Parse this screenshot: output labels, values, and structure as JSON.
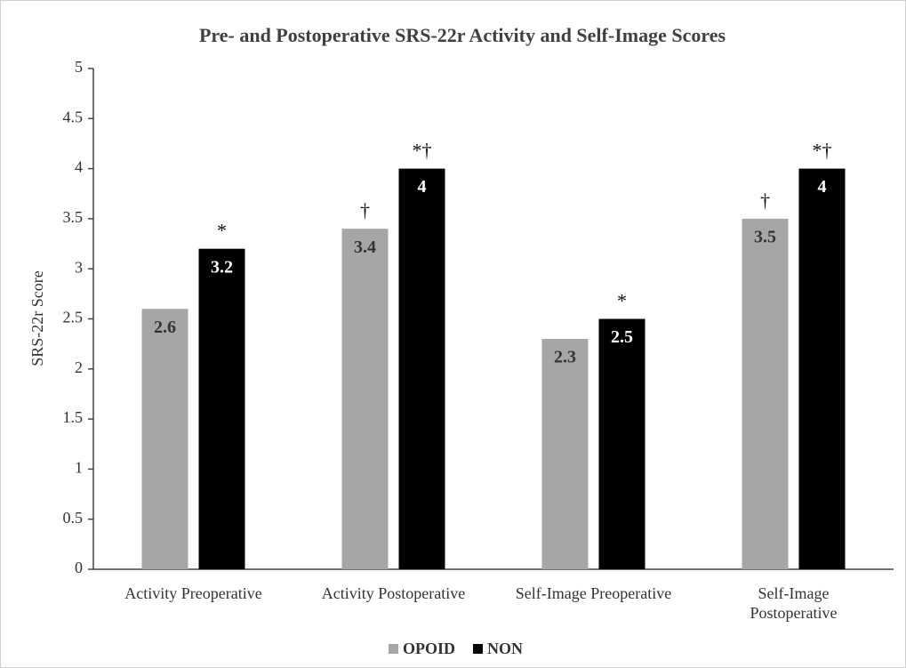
{
  "chart_data": {
    "type": "bar",
    "title": "Pre- and Postoperative SRS-22r Activity and Self-Image Scores",
    "y_label": "SRS-22r Score",
    "categories": [
      "Activity Preoperative",
      "Activity Postoperative",
      "Self-Image Preoperative",
      "Self-Image Postoperative"
    ],
    "series": [
      {
        "name": "OPOID",
        "color": "#a6a6a6",
        "values": [
          2.6,
          3.4,
          2.3,
          3.5
        ],
        "annotations": [
          null,
          "†",
          null,
          "†"
        ]
      },
      {
        "name": "NON",
        "color": "#000000",
        "values": [
          3.2,
          4,
          2.5,
          4
        ],
        "annotations": [
          "*",
          "*†",
          "*",
          "*†"
        ]
      }
    ],
    "ylim": [
      0,
      5
    ],
    "yticks": [
      0,
      0.5,
      1,
      1.5,
      2,
      2.5,
      3,
      3.5,
      4,
      4.5,
      5
    ],
    "grid": false,
    "legend": "bottom"
  }
}
